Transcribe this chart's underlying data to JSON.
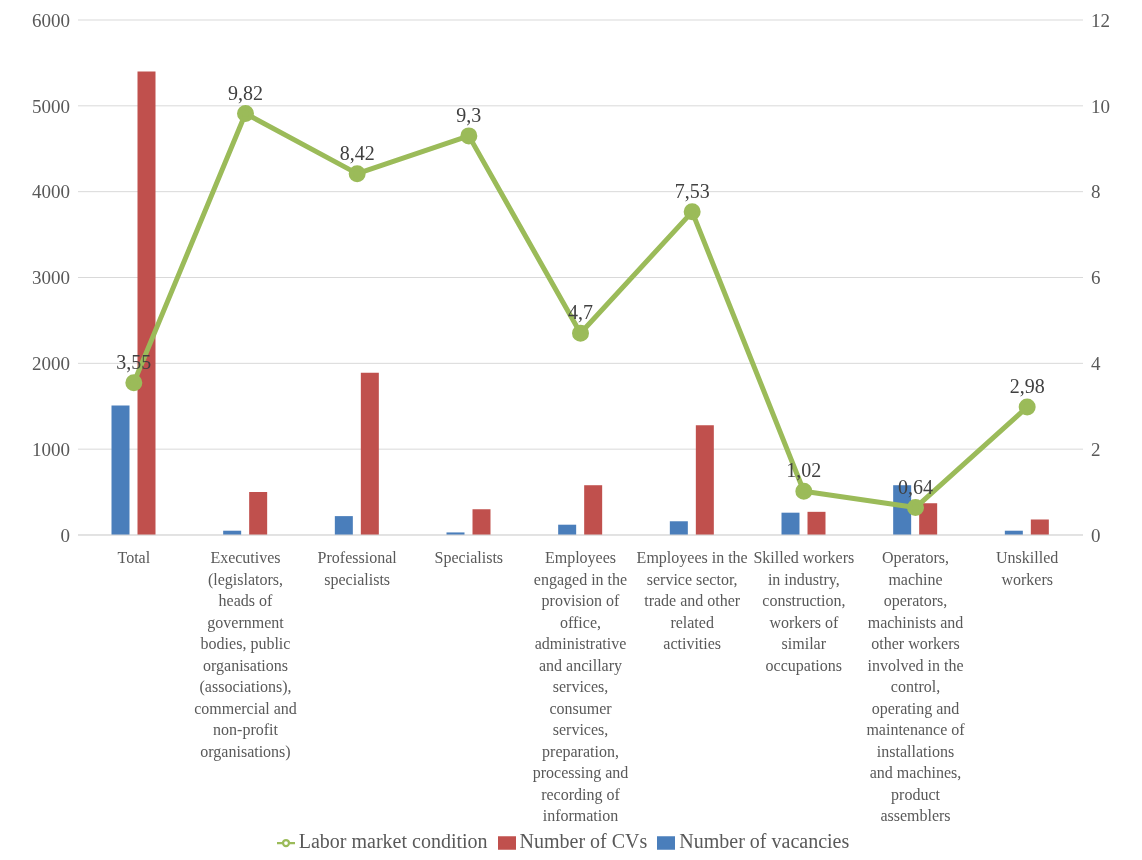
{
  "chart_data": {
    "type": "bar",
    "categories": [
      "Total",
      "Executives (legislators, heads of government bodies, public organisations (associations), commercial and non-profit organisations)",
      "Professional specialists",
      "Specialists",
      "Employees engaged in the provision of office, administrative and ancillary services, consumer services, preparation, processing and recording of information",
      "Employees in the service sector, trade and other related activities",
      "Skilled workers in industry, construction, workers of similar occupations",
      "Operators, machine operators, machinists and other workers involved in the control, operating and maintenance of installations and machines, product assemblers",
      "Unskilled workers"
    ],
    "series": [
      {
        "name": "Number of vacancies",
        "color": "#4a7ebb",
        "values": [
          1510,
          50,
          220,
          30,
          120,
          160,
          260,
          580,
          50
        ]
      },
      {
        "name": "Number of CVs",
        "color": "#c0504d",
        "values": [
          5400,
          500,
          1890,
          300,
          580,
          1280,
          270,
          370,
          180
        ]
      },
      {
        "name": "Labor market condition",
        "type": "line",
        "axis": "y2",
        "color": "#9bbb59",
        "values": [
          3.55,
          9.82,
          8.42,
          9.3,
          4.7,
          7.53,
          1.02,
          0.64,
          2.98
        ],
        "value_labels": [
          "3,55",
          "9,82",
          "8,42",
          "9,3",
          "4,7",
          "7,53",
          "1,02",
          "0,64",
          "2,98"
        ]
      }
    ],
    "ylim": [
      0,
      6000
    ],
    "yticks": [
      0,
      1000,
      2000,
      3000,
      4000,
      5000,
      6000
    ],
    "y2lim": [
      0,
      12
    ],
    "y2ticks": [
      0,
      2,
      4,
      6,
      8,
      10,
      12
    ],
    "grid": "y",
    "legend": "bottom",
    "marker": "circle"
  }
}
